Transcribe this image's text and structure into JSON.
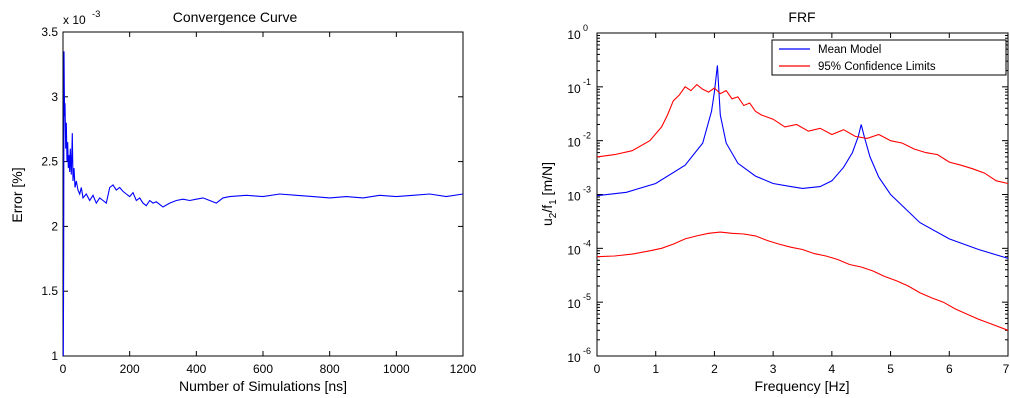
{
  "chart_data": [
    {
      "type": "line",
      "title": "Convergence Curve",
      "xlabel": "Number of Simulations [ns]",
      "ylabel": "Error [%]",
      "y_multiplier_label": "x 10",
      "y_multiplier_exponent": "-3",
      "xlim": [
        0,
        1200
      ],
      "ylim": [
        1,
        3.5
      ],
      "x_ticks": [
        "0",
        "200",
        "400",
        "600",
        "800",
        "1000",
        "1200"
      ],
      "y_ticks": [
        "1",
        "1.5",
        "2",
        "2.5",
        "3",
        "3.5"
      ],
      "grid": false,
      "series": [
        {
          "color": "#0000ff",
          "x": [
            1,
            2,
            3,
            4,
            5,
            6,
            8,
            10,
            12,
            14,
            16,
            18,
            20,
            22,
            25,
            28,
            30,
            33,
            36,
            40,
            45,
            50,
            55,
            60,
            70,
            80,
            90,
            100,
            110,
            120,
            130,
            140,
            150,
            160,
            170,
            180,
            190,
            200,
            210,
            220,
            230,
            240,
            250,
            260,
            270,
            280,
            290,
            300,
            320,
            340,
            360,
            380,
            400,
            420,
            440,
            460,
            480,
            500,
            550,
            600,
            650,
            700,
            750,
            800,
            850,
            900,
            950,
            1000,
            1050,
            1100,
            1150,
            1200
          ],
          "y": [
            1.0,
            1.8,
            3.35,
            3.05,
            2.85,
            2.95,
            2.6,
            2.8,
            2.5,
            2.65,
            2.45,
            2.55,
            2.42,
            2.6,
            2.4,
            2.72,
            2.35,
            2.45,
            2.3,
            2.35,
            2.28,
            2.25,
            2.3,
            2.22,
            2.25,
            2.2,
            2.24,
            2.18,
            2.22,
            2.2,
            2.18,
            2.3,
            2.32,
            2.28,
            2.3,
            2.27,
            2.25,
            2.23,
            2.26,
            2.2,
            2.22,
            2.18,
            2.16,
            2.2,
            2.18,
            2.19,
            2.17,
            2.15,
            2.18,
            2.2,
            2.21,
            2.2,
            2.21,
            2.22,
            2.2,
            2.18,
            2.22,
            2.23,
            2.24,
            2.23,
            2.25,
            2.24,
            2.23,
            2.22,
            2.23,
            2.22,
            2.24,
            2.23,
            2.24,
            2.25,
            2.23,
            2.25
          ]
        }
      ]
    },
    {
      "type": "line",
      "title": "FRF",
      "xlabel": "Frequency [Hz]",
      "ylabel_parts": [
        "u",
        "2",
        "/f",
        "1",
        " [m/N]"
      ],
      "xlim": [
        0,
        7
      ],
      "ylim": [
        1e-06,
        1
      ],
      "y_scale": "log",
      "x_ticks": [
        "0",
        "1",
        "2",
        "3",
        "4",
        "5",
        "6",
        "7"
      ],
      "y_tick_exponents": [
        "-6",
        "-5",
        "-4",
        "-3",
        "-2",
        "-1",
        "0"
      ],
      "y_tick_base": "10",
      "grid": false,
      "legend_position": "top-right",
      "series": [
        {
          "name": "Mean Model",
          "color": "#0000ff",
          "x": [
            0,
            0.5,
            1.0,
            1.5,
            1.8,
            1.95,
            2.0,
            2.05,
            2.1,
            2.2,
            2.4,
            2.7,
            3.0,
            3.3,
            3.5,
            3.8,
            4.0,
            4.2,
            4.35,
            4.45,
            4.5,
            4.55,
            4.65,
            4.8,
            5.0,
            5.5,
            6.0,
            6.5,
            7.0
          ],
          "y": [
            0.00095,
            0.0011,
            0.0016,
            0.0035,
            0.009,
            0.035,
            0.08,
            0.25,
            0.03,
            0.009,
            0.0038,
            0.0022,
            0.0016,
            0.0014,
            0.0013,
            0.0014,
            0.0018,
            0.0032,
            0.006,
            0.012,
            0.02,
            0.012,
            0.005,
            0.0021,
            0.001,
            0.0003,
            0.00015,
            9.5e-05,
            6.5e-05
          ]
        },
        {
          "name": "95% Confidence Limits",
          "color": "#ff0000",
          "x": [
            0,
            0.3,
            0.6,
            0.9,
            1.1,
            1.2,
            1.3,
            1.4,
            1.5,
            1.6,
            1.7,
            1.8,
            1.9,
            2.0,
            2.1,
            2.2,
            2.3,
            2.4,
            2.5,
            2.6,
            2.7,
            2.8,
            3.0,
            3.2,
            3.4,
            3.6,
            3.8,
            4.0,
            4.2,
            4.4,
            4.6,
            4.8,
            5.0,
            5.2,
            5.4,
            5.6,
            5.8,
            6.0,
            6.2,
            6.4,
            6.6,
            6.8,
            7.0
          ],
          "y": [
            0.005,
            0.0055,
            0.0065,
            0.01,
            0.018,
            0.03,
            0.055,
            0.07,
            0.1,
            0.085,
            0.11,
            0.09,
            0.08,
            0.095,
            0.075,
            0.085,
            0.06,
            0.065,
            0.045,
            0.05,
            0.035,
            0.03,
            0.025,
            0.018,
            0.02,
            0.015,
            0.017,
            0.013,
            0.016,
            0.012,
            0.011,
            0.013,
            0.01,
            0.009,
            0.007,
            0.006,
            0.0055,
            0.004,
            0.0035,
            0.003,
            0.0025,
            0.0018,
            0.0016
          ]
        },
        {
          "name": "",
          "color": "#ff0000",
          "x": [
            0,
            0.3,
            0.6,
            0.9,
            1.1,
            1.3,
            1.5,
            1.7,
            1.9,
            2.1,
            2.3,
            2.5,
            2.7,
            2.9,
            3.1,
            3.3,
            3.5,
            3.7,
            3.9,
            4.1,
            4.3,
            4.5,
            4.7,
            4.9,
            5.1,
            5.3,
            5.5,
            5.7,
            5.9,
            6.1,
            6.3,
            6.5,
            6.7,
            7.0
          ],
          "y": [
            7e-05,
            7.2e-05,
            7.8e-05,
            9e-05,
            0.0001,
            0.00012,
            0.00015,
            0.00017,
            0.00019,
            0.0002,
            0.00019,
            0.000185,
            0.00017,
            0.00014,
            0.00012,
            0.000105,
            9.5e-05,
            8e-05,
            7.2e-05,
            6.2e-05,
            5e-05,
            4.5e-05,
            3.8e-05,
            3e-05,
            2.5e-05,
            2e-05,
            1.5e-05,
            1.2e-05,
            1e-05,
            7.5e-06,
            6e-06,
            4.8e-06,
            4e-06,
            3e-06
          ]
        }
      ]
    }
  ]
}
